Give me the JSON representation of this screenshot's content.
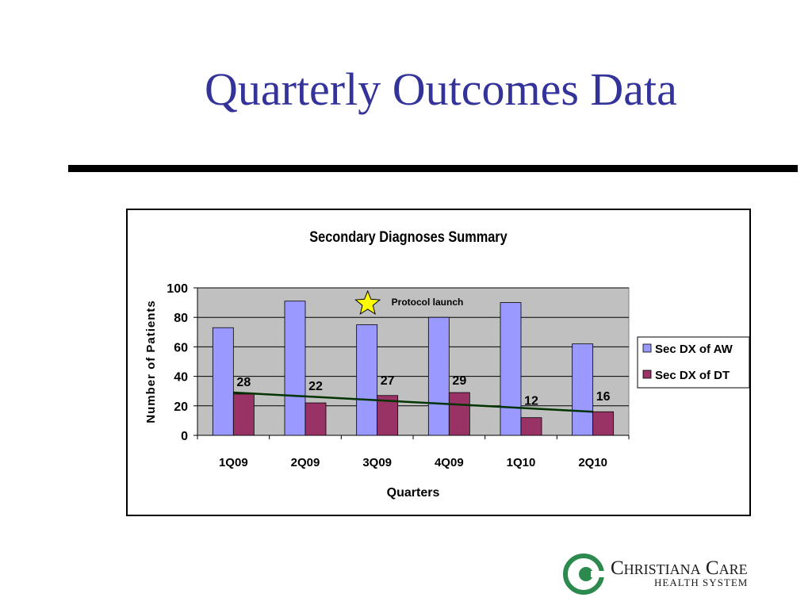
{
  "slide": {
    "title": "Quarterly Outcomes Data",
    "title_color": "#333399",
    "rule_color": "#000000"
  },
  "chart_data": {
    "type": "bar",
    "title": "Secondary Diagnoses Summary",
    "xlabel": "Quarters",
    "ylabel": "Number of Patients",
    "categories": [
      "1Q09",
      "2Q09",
      "3Q09",
      "4Q09",
      "1Q10",
      "2Q10"
    ],
    "ylim": [
      0,
      100
    ],
    "yticks": [
      0,
      20,
      40,
      60,
      80,
      100
    ],
    "grid": true,
    "plot_background": "#c0c0c0",
    "series": [
      {
        "name": "Sec DX of AW",
        "values": [
          73,
          91,
          75,
          80,
          90,
          62
        ],
        "color": "#9999ff",
        "labels": []
      },
      {
        "name": "Sec DX of DT",
        "values": [
          28,
          22,
          27,
          29,
          12,
          16
        ],
        "color": "#993366",
        "labels": [
          "28",
          "22",
          "27",
          "29",
          "12",
          "16"
        ]
      }
    ],
    "trendline": {
      "series": "Sec DX of DT",
      "start": 29,
      "end": 16,
      "color": "#003300"
    },
    "annotation": {
      "text": "Protocol launch",
      "marker": "star-icon",
      "marker_color": "#ffff00",
      "near_category": "3Q09"
    },
    "legend": {
      "position": "right"
    }
  },
  "logo": {
    "name": "Christiana Care",
    "subtitle": "HEALTH SYSTEM",
    "color": "#2d8a4e",
    "text_color": "#1a1a1a"
  }
}
